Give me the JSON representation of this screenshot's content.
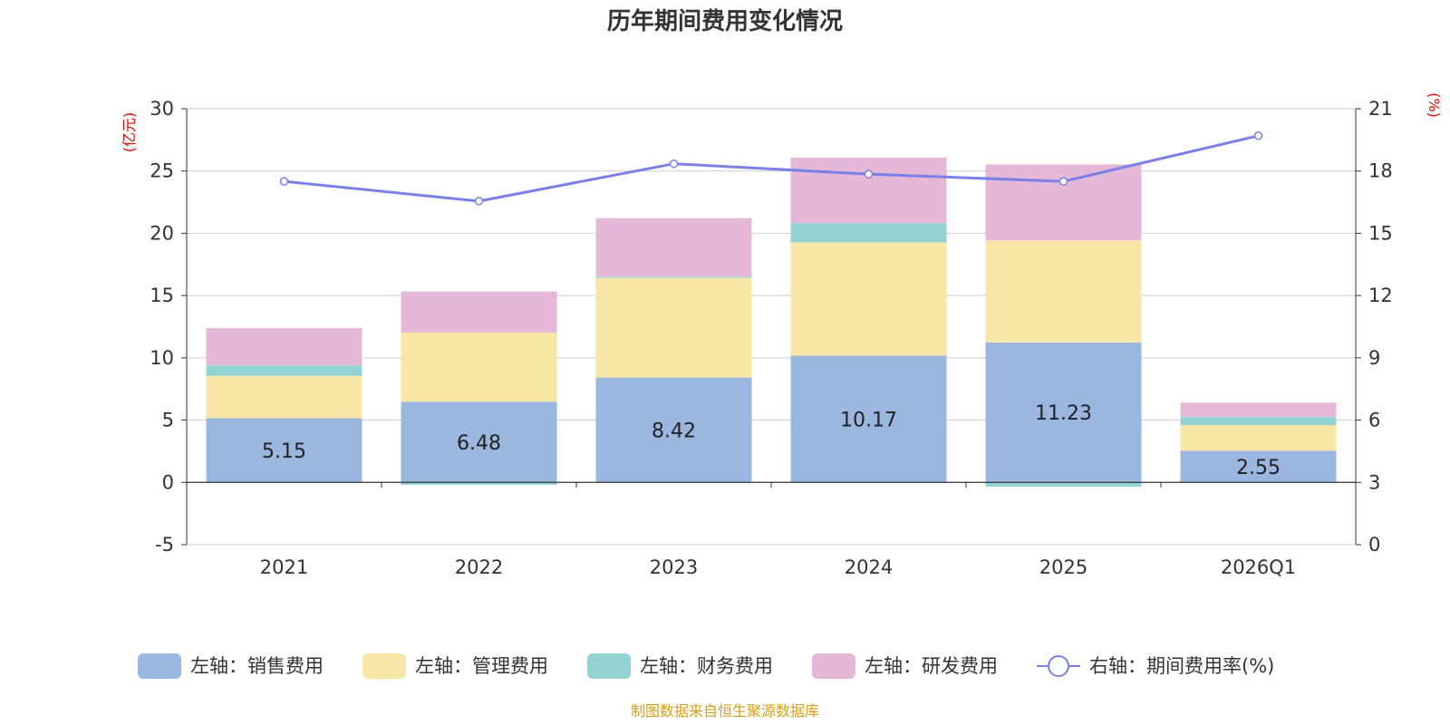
{
  "chart_data": {
    "type": "bar",
    "stacked": true,
    "title": "历年期间费用变化情况",
    "categories": [
      "2021",
      "2022",
      "2023",
      "2024",
      "2025",
      "2026Q1"
    ],
    "left_axis": {
      "unit": "(亿元)",
      "min": -5,
      "max": 30,
      "ticks": [
        -5,
        0,
        5,
        10,
        15,
        20,
        25,
        30
      ]
    },
    "right_axis": {
      "unit": "(%)",
      "min": 0,
      "max": 21,
      "ticks": [
        0,
        3,
        6,
        9,
        12,
        15,
        18,
        21
      ]
    },
    "series": [
      {
        "name": "左轴：销售费用",
        "axis": "left",
        "type": "bar",
        "color": "#9bb7e0",
        "values": [
          5.15,
          6.48,
          8.42,
          10.17,
          11.23,
          2.55
        ],
        "show_labels": true
      },
      {
        "name": "左轴：管理费用",
        "axis": "left",
        "type": "bar",
        "color": "#f7e6a6",
        "values": [
          3.4,
          5.55,
          8.0,
          9.1,
          8.2,
          2.05
        ]
      },
      {
        "name": "左轴：财务费用",
        "axis": "left",
        "type": "bar",
        "color": "#93d3d3",
        "values": [
          0.85,
          -0.2,
          0.1,
          1.55,
          -0.35,
          0.65
        ]
      },
      {
        "name": "左轴：研发费用",
        "axis": "left",
        "type": "bar",
        "color": "#e6b8d8",
        "values": [
          3.0,
          3.3,
          4.7,
          5.25,
          6.1,
          1.15
        ]
      },
      {
        "name": "右轴：期间费用率(%)",
        "axis": "right",
        "type": "line",
        "color": "#7b7fe8",
        "values": [
          17.5,
          16.55,
          18.35,
          17.85,
          17.5,
          19.7
        ]
      }
    ]
  },
  "source": "制图数据来自恒生聚源数据库"
}
